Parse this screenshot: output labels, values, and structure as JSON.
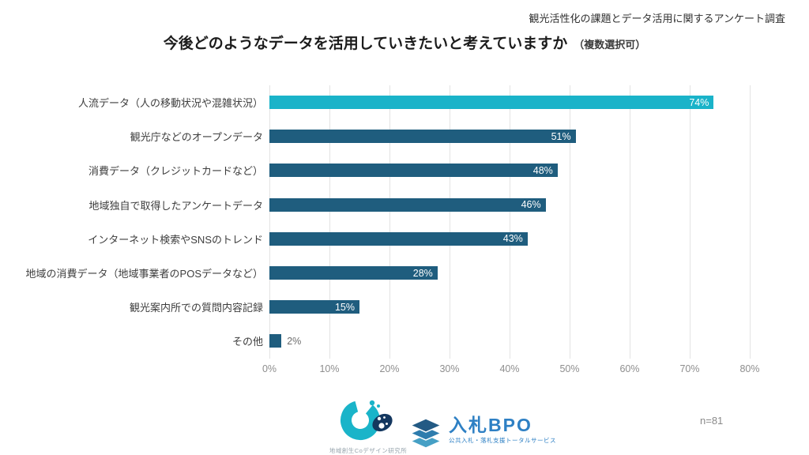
{
  "header": {
    "source_note": "観光活性化の課題とデータ活用に関するアンケート調査",
    "title": "今後どのようなデータを活用していきたいと考えていますか",
    "title_note": "（複数選択可）"
  },
  "chart_data": {
    "type": "bar",
    "orientation": "horizontal",
    "title": "今後どのようなデータを活用していきたいと考えていますか（複数選択可）",
    "categories": [
      "人流データ（人の移動状況や混雑状況）",
      "観光庁などのオープンデータ",
      "消費データ（クレジットカードなど）",
      "地域独自で取得したアンケートデータ",
      "インターネット検索やSNSのトレンド",
      "地域の消費データ（地域事業者のPOSデータなど）",
      "観光案内所での質問内容記録",
      "その他"
    ],
    "values": [
      74,
      51,
      48,
      46,
      43,
      28,
      15,
      2
    ],
    "value_suffix": "%",
    "xlim": [
      0,
      80
    ],
    "x_ticks": [
      "0%",
      "10%",
      "20%",
      "30%",
      "40%",
      "50%",
      "60%",
      "70%",
      "80%"
    ],
    "grid": true,
    "legend": false,
    "highlight_index": 0,
    "colors": {
      "highlight": "#1ab3c9",
      "default": "#1f5d7e",
      "value_label_inside": "#ffffff",
      "value_label_outside": "#6e6e6e",
      "gridline": "#e3e3e3"
    }
  },
  "footer": {
    "left_logo": {
      "caption": "地域創生Coデザイン研究所"
    },
    "right_logo": {
      "title": "入札BPO",
      "subtitle": "公共入札・落札支援トータルサービス"
    },
    "sample_size": "n=81"
  }
}
